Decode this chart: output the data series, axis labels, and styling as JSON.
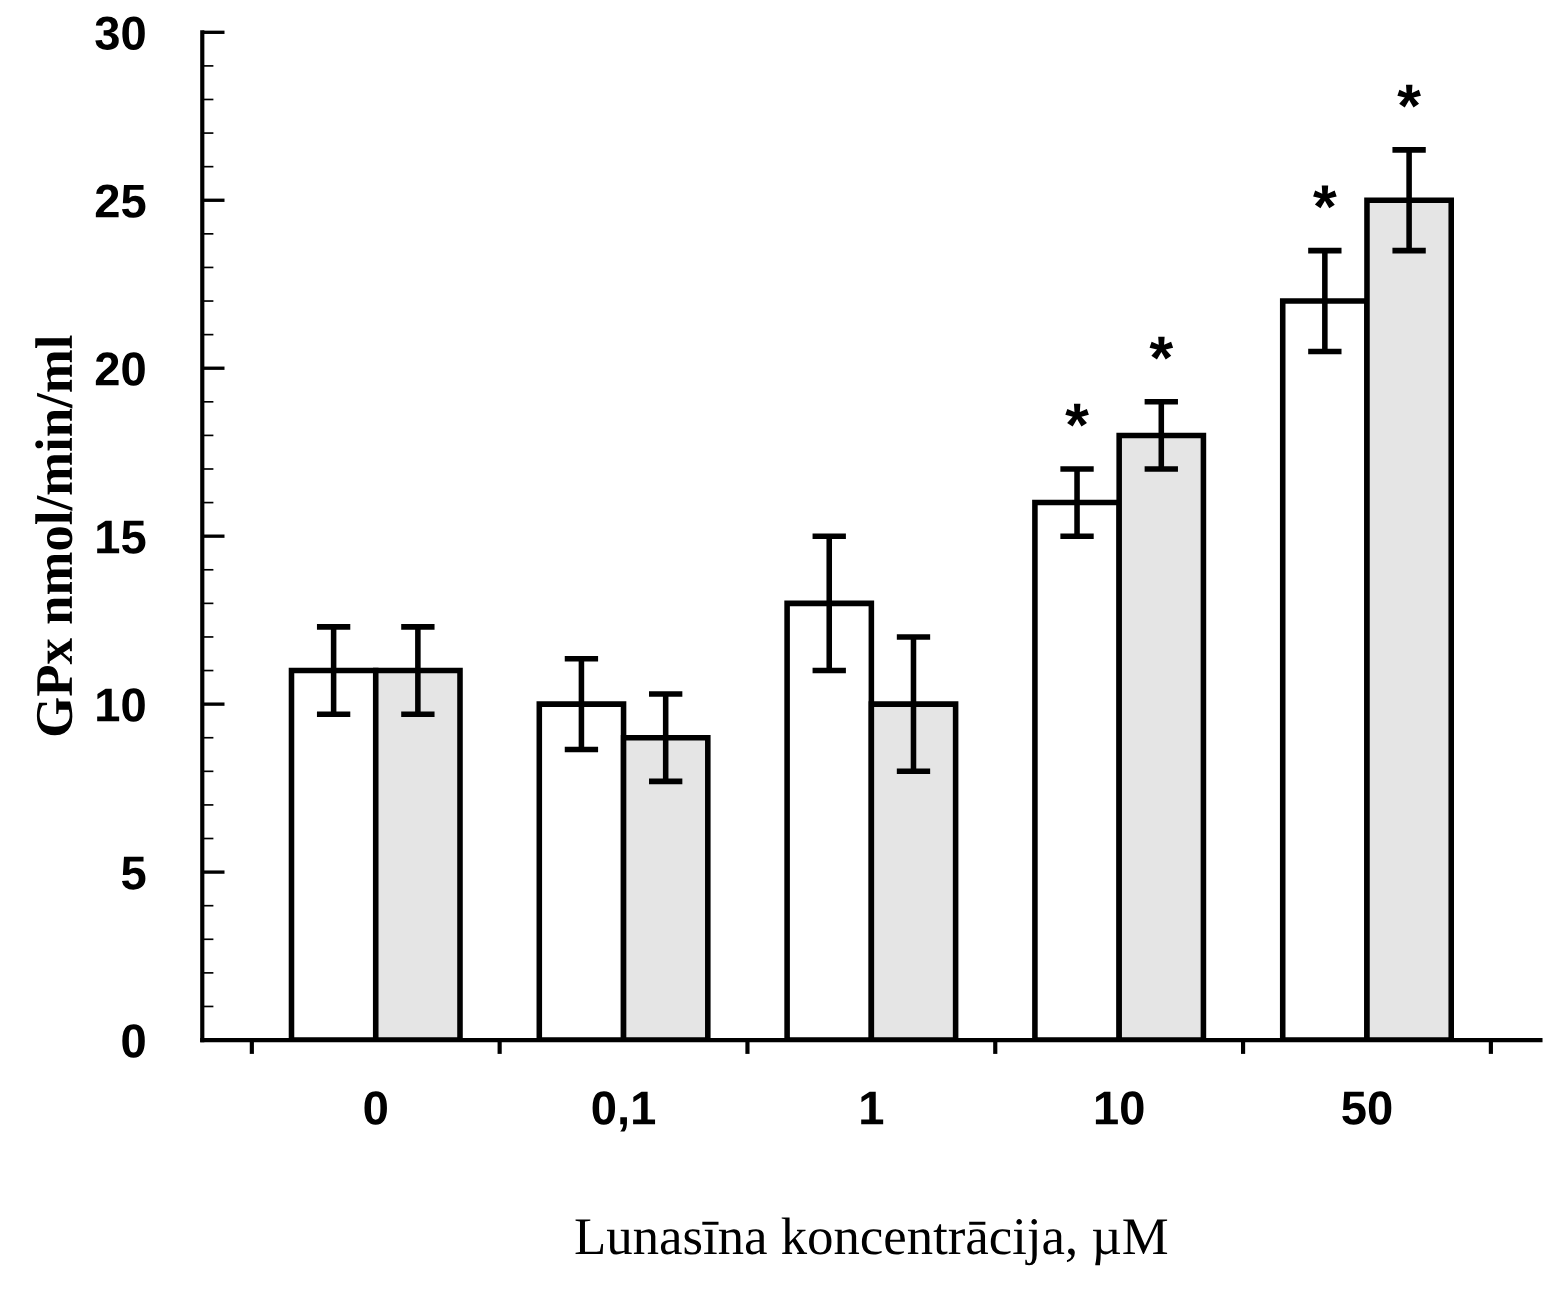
{
  "chart_data": {
    "type": "bar",
    "xlabel": "Lunasīna koncentrācija, µM",
    "ylabel": "GPx nmol/min/ml",
    "categories": [
      "0",
      "0,1",
      "1",
      "10",
      "50"
    ],
    "series": [
      {
        "color": "#ffffff",
        "values": [
          11,
          10,
          13,
          16,
          22
        ],
        "errors": [
          1.3,
          1.35,
          2,
          1,
          1.5
        ],
        "value_labels": [
          null,
          null,
          null,
          "*",
          "*"
        ]
      },
      {
        "color": "#e5e5e5",
        "values": [
          11,
          9,
          10,
          18,
          25
        ],
        "errors": [
          1.3,
          1.3,
          2,
          1,
          1.5
        ],
        "value_labels": [
          null,
          null,
          null,
          "*",
          "*"
        ]
      }
    ],
    "ylim": [
      0,
      30
    ],
    "yticks": [
      0,
      5,
      10,
      15,
      20,
      25,
      30
    ],
    "grid": false,
    "legend": false
  }
}
